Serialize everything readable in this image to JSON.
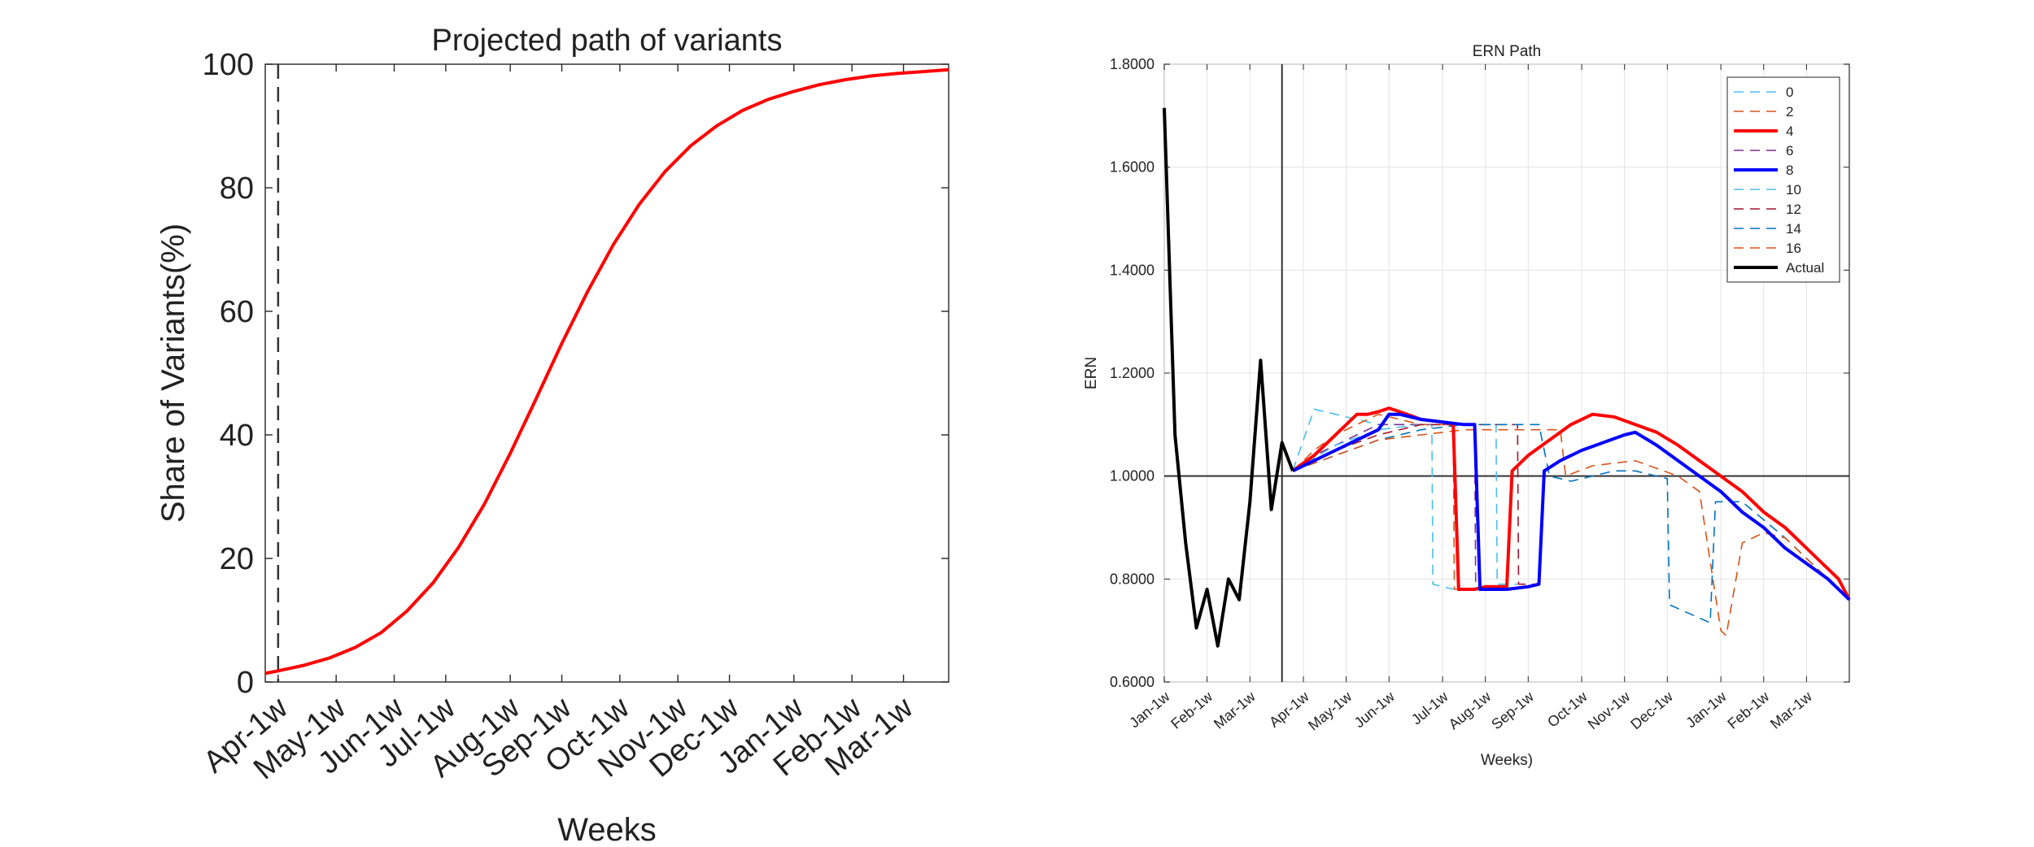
{
  "chart_data": [
    {
      "type": "line",
      "title": "Projected path of variants",
      "xlabel": "Weeks",
      "ylabel": "Share of Variants(%)",
      "ylim": [
        0,
        100
      ],
      "yticks": [
        0,
        20,
        40,
        60,
        80,
        100
      ],
      "xlim": [
        -1,
        52
      ],
      "xticks": [
        {
          "x": 0,
          "label": "Apr-1w"
        },
        {
          "x": 4.5,
          "label": "May-1w"
        },
        {
          "x": 9,
          "label": "Jun-1w"
        },
        {
          "x": 13,
          "label": "Jul-1w"
        },
        {
          "x": 18,
          "label": "Aug-1w"
        },
        {
          "x": 22,
          "label": "Sep-1w"
        },
        {
          "x": 26.5,
          "label": "Oct-1w"
        },
        {
          "x": 31,
          "label": "Nov-1w"
        },
        {
          "x": 35,
          "label": "Dec-1w"
        },
        {
          "x": 40,
          "label": "Jan-1w"
        },
        {
          "x": 44.5,
          "label": "Feb-1w"
        },
        {
          "x": 48.5,
          "label": "Mar-1w"
        }
      ],
      "vline_x": 0,
      "grid": false,
      "series": [
        {
          "color": "#ff0000",
          "x": [
            -1,
            0,
            2,
            4,
            6,
            8,
            10,
            12,
            14,
            16,
            18,
            20,
            22,
            24,
            26,
            28,
            30,
            32,
            34,
            36,
            38,
            40,
            42,
            44,
            46,
            48,
            50,
            52
          ],
          "values": [
            1.4,
            1.8,
            2.7,
            3.9,
            5.6,
            8.0,
            11.5,
            16.0,
            21.8,
            28.8,
            37.0,
            45.8,
            54.8,
            63.2,
            70.8,
            77.3,
            82.6,
            86.8,
            90.0,
            92.5,
            94.3,
            95.6,
            96.7,
            97.5,
            98.1,
            98.5,
            98.8,
            99.1
          ]
        }
      ]
    },
    {
      "type": "line",
      "title": "ERN Path",
      "xlabel": "Weeks)",
      "ylabel": "ERN",
      "ylim": [
        0.6,
        1.8
      ],
      "yticks": [
        "0.6000",
        "0.8000",
        "1.0000",
        "1.2000",
        "1.4000",
        "1.6000",
        "1.8000"
      ],
      "xlim": [
        0,
        64
      ],
      "xticks": [
        {
          "x": 0,
          "label": "Jan-1w"
        },
        {
          "x": 4,
          "label": "Feb-1w"
        },
        {
          "x": 8,
          "label": "Mar-1w"
        },
        {
          "x": 13,
          "label": "Apr-1w"
        },
        {
          "x": 17,
          "label": "May-1w"
        },
        {
          "x": 21,
          "label": "Jun-1w"
        },
        {
          "x": 26,
          "label": "Jul-1w"
        },
        {
          "x": 30,
          "label": "Aug-1w"
        },
        {
          "x": 34,
          "label": "Sep-1w"
        },
        {
          "x": 39,
          "label": "Oct-1w"
        },
        {
          "x": 43,
          "label": "Nov-1w"
        },
        {
          "x": 47,
          "label": "Dec-1w"
        },
        {
          "x": 52,
          "label": "Jan-1w"
        },
        {
          "x": 56,
          "label": "Feb-1w"
        },
        {
          "x": 60,
          "label": "Mar-1w"
        }
      ],
      "vline_x": 11,
      "hline_y": 1.0,
      "grid": true,
      "legend_position": "top-right",
      "series": [
        {
          "name": "0",
          "color": "#4dbeee",
          "style": "dashed",
          "x": [
            12,
            14,
            16,
            18,
            20,
            22,
            24,
            25,
            25.1,
            27
          ],
          "values": [
            1.01,
            1.13,
            1.12,
            1.11,
            1.1,
            1.1,
            1.1,
            1.1,
            0.79,
            0.78
          ]
        },
        {
          "name": "2",
          "color": "#d95319",
          "style": "dashed",
          "x": [
            12,
            14,
            16,
            18,
            20,
            22,
            24,
            26,
            27,
            27.1,
            29
          ],
          "values": [
            1.01,
            1.05,
            1.08,
            1.1,
            1.12,
            1.11,
            1.1,
            1.1,
            1.1,
            0.78,
            0.78
          ]
        },
        {
          "name": "4",
          "color": "#ff0000",
          "style": "solid",
          "bold": true,
          "x": [
            12,
            14,
            16,
            18,
            19,
            20,
            21,
            22,
            24,
            26,
            27,
            27.5,
            29,
            30,
            32,
            32.5,
            34,
            36,
            38,
            40,
            42,
            44,
            46,
            48,
            50,
            52,
            54,
            56,
            58,
            60,
            61,
            62,
            63,
            64
          ],
          "values": [
            1.01,
            1.04,
            1.08,
            1.12,
            1.12,
            1.125,
            1.132,
            1.125,
            1.11,
            1.105,
            1.1,
            0.78,
            0.78,
            0.785,
            0.785,
            1.01,
            1.04,
            1.07,
            1.1,
            1.12,
            1.115,
            1.1,
            1.085,
            1.06,
            1.03,
            1.0,
            0.97,
            0.93,
            0.9,
            0.86,
            0.84,
            0.82,
            0.8,
            0.76
          ]
        },
        {
          "name": "6",
          "color": "#7e2f8e",
          "style": "dashed",
          "x": [
            12,
            14,
            16,
            18,
            20,
            22,
            24,
            26,
            28,
            29,
            29.1,
            31
          ],
          "values": [
            1.01,
            1.04,
            1.06,
            1.08,
            1.1,
            1.1,
            1.1,
            1.1,
            1.1,
            1.1,
            0.78,
            0.78
          ]
        },
        {
          "name": "8",
          "color": "#0000ff",
          "style": "solid",
          "bold": true,
          "x": [
            12,
            14,
            16,
            18,
            20,
            21,
            22,
            24,
            26,
            28,
            29,
            29.5,
            32,
            34,
            35,
            35.5,
            37,
            39,
            41,
            43,
            44,
            46,
            48,
            50,
            52,
            54,
            56,
            58,
            60,
            62,
            64
          ],
          "values": [
            1.01,
            1.03,
            1.05,
            1.07,
            1.09,
            1.12,
            1.12,
            1.11,
            1.105,
            1.1,
            1.1,
            0.78,
            0.78,
            0.785,
            0.79,
            1.01,
            1.03,
            1.05,
            1.065,
            1.08,
            1.085,
            1.06,
            1.03,
            1.0,
            0.97,
            0.93,
            0.9,
            0.86,
            0.83,
            0.8,
            0.76
          ]
        },
        {
          "name": "10",
          "color": "#4dbeee",
          "style": "dashed",
          "x": [
            12,
            16,
            20,
            24,
            28,
            31,
            31.1,
            33
          ],
          "values": [
            1.01,
            1.06,
            1.09,
            1.1,
            1.1,
            1.1,
            0.79,
            0.79
          ]
        },
        {
          "name": "12",
          "color": "#a2142f",
          "style": "dashed",
          "x": [
            12,
            16,
            20,
            24,
            28,
            32,
            33,
            33.1,
            35
          ],
          "values": [
            1.01,
            1.05,
            1.08,
            1.1,
            1.1,
            1.1,
            1.1,
            0.79,
            0.79
          ]
        },
        {
          "name": "14",
          "color": "#0072bd",
          "style": "dashed",
          "x": [
            12,
            16,
            20,
            24,
            28,
            32,
            35,
            36,
            38,
            40,
            42,
            44,
            46,
            47,
            47.2,
            51,
            51.5,
            54,
            58,
            62,
            64
          ],
          "values": [
            1.01,
            1.04,
            1.07,
            1.09,
            1.1,
            1.1,
            1.1,
            1.0,
            0.99,
            1.0,
            1.01,
            1.01,
            1.0,
            0.995,
            0.75,
            0.715,
            0.95,
            0.95,
            0.88,
            0.8,
            0.76
          ]
        },
        {
          "name": "16",
          "color": "#d95319",
          "style": "dashed",
          "x": [
            12,
            16,
            20,
            24,
            28,
            32,
            36,
            37,
            37.5,
            40,
            44,
            48,
            50,
            52,
            52.5,
            54,
            56,
            58,
            60,
            62,
            64
          ],
          "values": [
            1.01,
            1.04,
            1.07,
            1.08,
            1.09,
            1.09,
            1.09,
            1.09,
            1.0,
            1.02,
            1.03,
            1.0,
            0.97,
            0.7,
            0.69,
            0.87,
            0.89,
            0.88,
            0.84,
            0.8,
            0.76
          ]
        },
        {
          "name": "Actual",
          "color": "#000000",
          "style": "solid",
          "bold": true,
          "x": [
            0,
            1,
            2,
            3,
            4,
            5,
            6,
            7,
            8,
            9,
            10,
            11,
            12
          ],
          "values": [
            1.715,
            1.08,
            0.87,
            0.705,
            0.78,
            0.67,
            0.8,
            0.76,
            0.95,
            1.225,
            0.935,
            1.065,
            1.01
          ]
        }
      ]
    }
  ]
}
